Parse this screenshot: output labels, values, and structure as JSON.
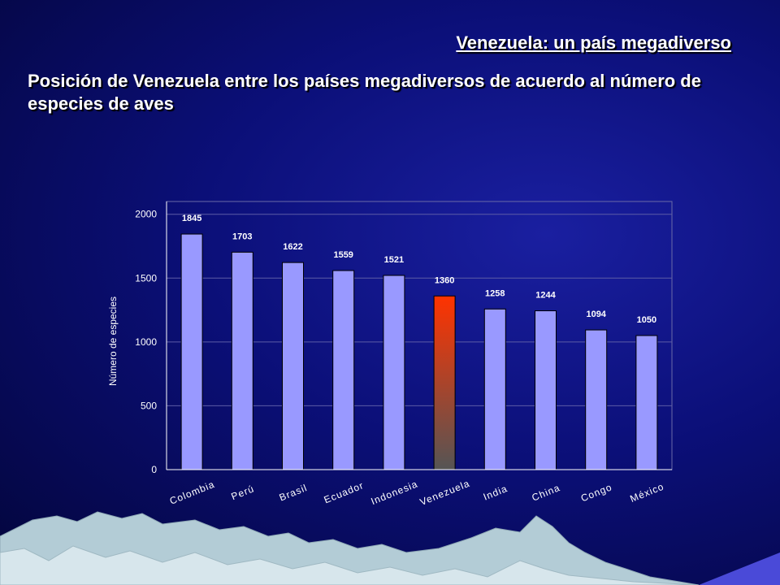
{
  "slide": {
    "title": "Venezuela:  un país megadiverso",
    "subtitle": "Posición de Venezuela entre los países megadiversos de acuerdo al número de especies de aves"
  },
  "colors": {
    "bar": "#9999ff",
    "highlight_top": "#ff3300",
    "highlight_bottom": "#555555",
    "axis": "#ffffff"
  },
  "chart_data": {
    "type": "bar",
    "categories": [
      "Colombia",
      "Perú",
      "Brasil",
      "Ecuador",
      "Indonesia",
      "Venezuela",
      "India",
      "China",
      "Congo",
      "México"
    ],
    "values": [
      1845,
      1703,
      1622,
      1559,
      1521,
      1360,
      1258,
      1244,
      1094,
      1050
    ],
    "highlight": "Venezuela",
    "ylabel": "Número de especies",
    "ylim": [
      0,
      2100
    ],
    "yticks": [
      0,
      500,
      1000,
      1500,
      2000
    ],
    "grid": true,
    "legend": "none",
    "data_labels": true
  }
}
